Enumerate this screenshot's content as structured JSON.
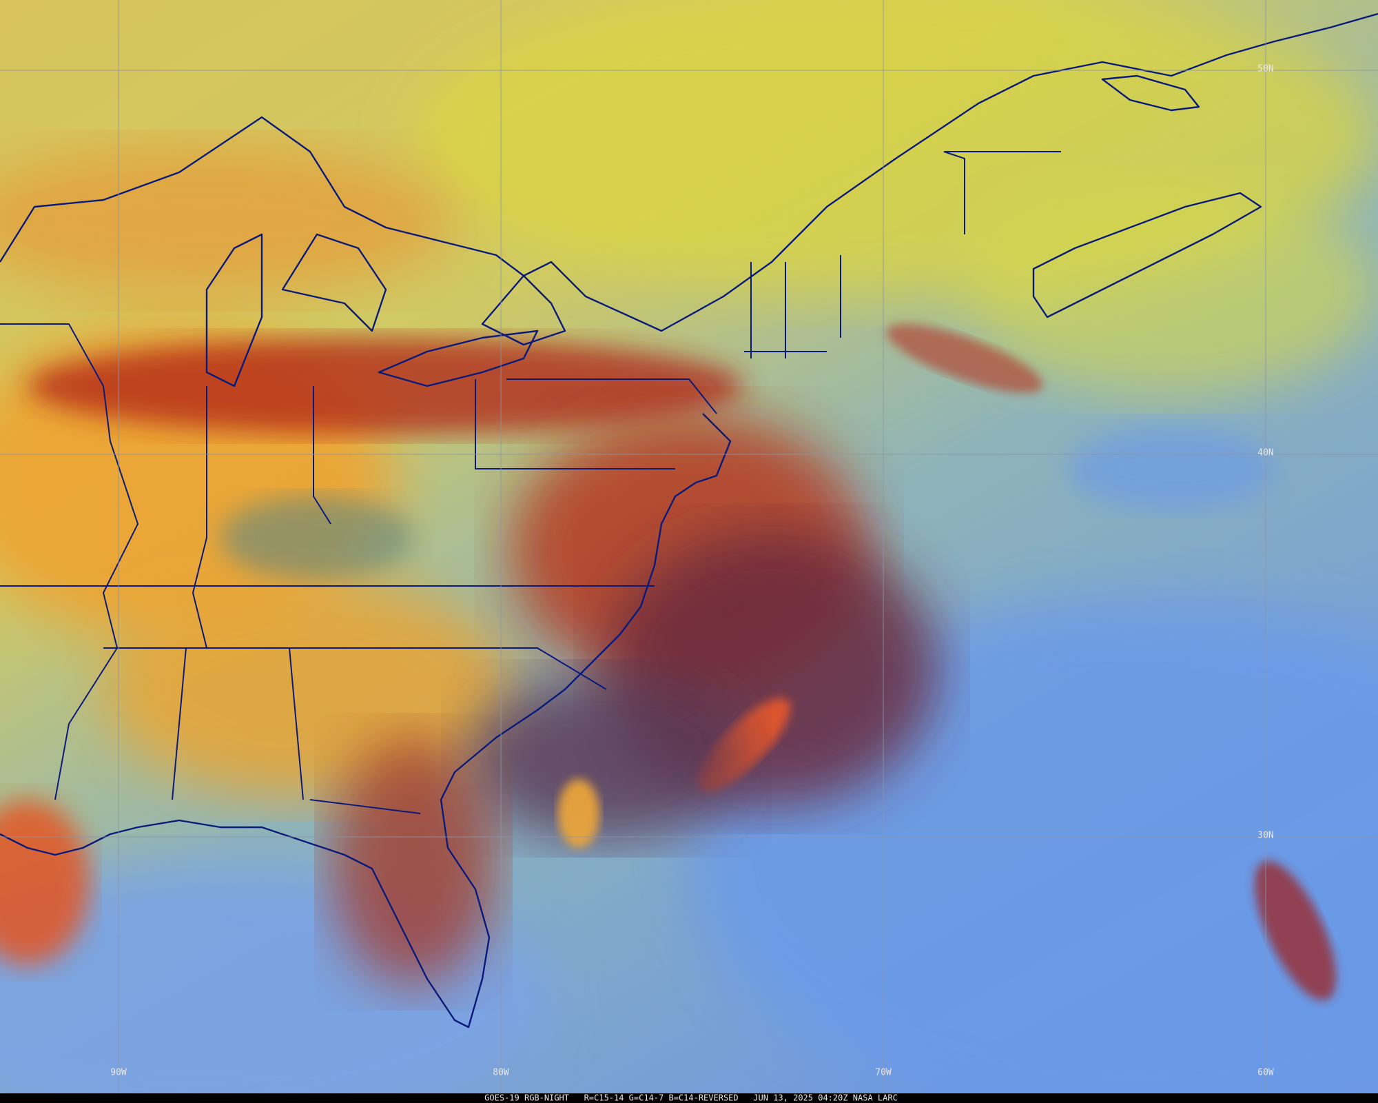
{
  "map": {
    "longitude_labels": [
      "90W",
      "80W",
      "70W",
      "60W"
    ],
    "latitude_labels": [
      "50N",
      "40N",
      "30N"
    ],
    "caption": "GOES-19 RGB-NIGHT   R=C15-14 G=C14-7 B=C14-REVERSED   JUN 13, 2025 04:20Z NASA LARC"
  }
}
